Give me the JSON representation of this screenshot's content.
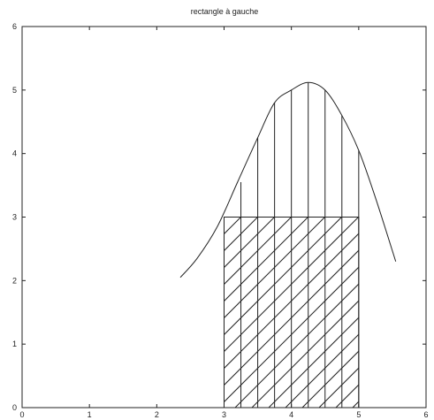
{
  "chart_data": {
    "type": "line",
    "title": "rectangle à gauche",
    "xlabel": "",
    "ylabel": "",
    "xlim": [
      0,
      6
    ],
    "ylim": [
      0,
      6
    ],
    "grid": false,
    "xticks": [
      "0",
      "1",
      "2",
      "3",
      "4",
      "5",
      "6"
    ],
    "yticks": [
      "0",
      "1",
      "2",
      "3",
      "4",
      "5",
      "6"
    ],
    "curve": {
      "x": [
        2.35,
        2.6,
        2.9,
        3.2,
        3.5,
        3.75,
        4.0,
        4.25,
        4.5,
        4.75,
        5.0,
        5.25,
        5.55
      ],
      "y": [
        2.05,
        2.35,
        2.85,
        3.55,
        4.25,
        4.8,
        5.0,
        5.12,
        5.0,
        4.6,
        4.05,
        3.3,
        2.3
      ]
    },
    "vertical_lines": {
      "x": [
        3.0,
        3.25,
        3.5,
        3.75,
        4.0,
        4.25,
        4.5,
        4.75,
        5.0
      ],
      "y_top": [
        2.95,
        3.55,
        4.25,
        4.8,
        5.0,
        5.12,
        5.0,
        4.6,
        4.05
      ]
    },
    "rectangle": {
      "x0": 3.0,
      "x1": 5.0,
      "y0": 0,
      "y1": 3.0,
      "fill": "diagonal-hatch"
    },
    "colors": {
      "line": "#222222",
      "background": "#ffffff"
    }
  }
}
